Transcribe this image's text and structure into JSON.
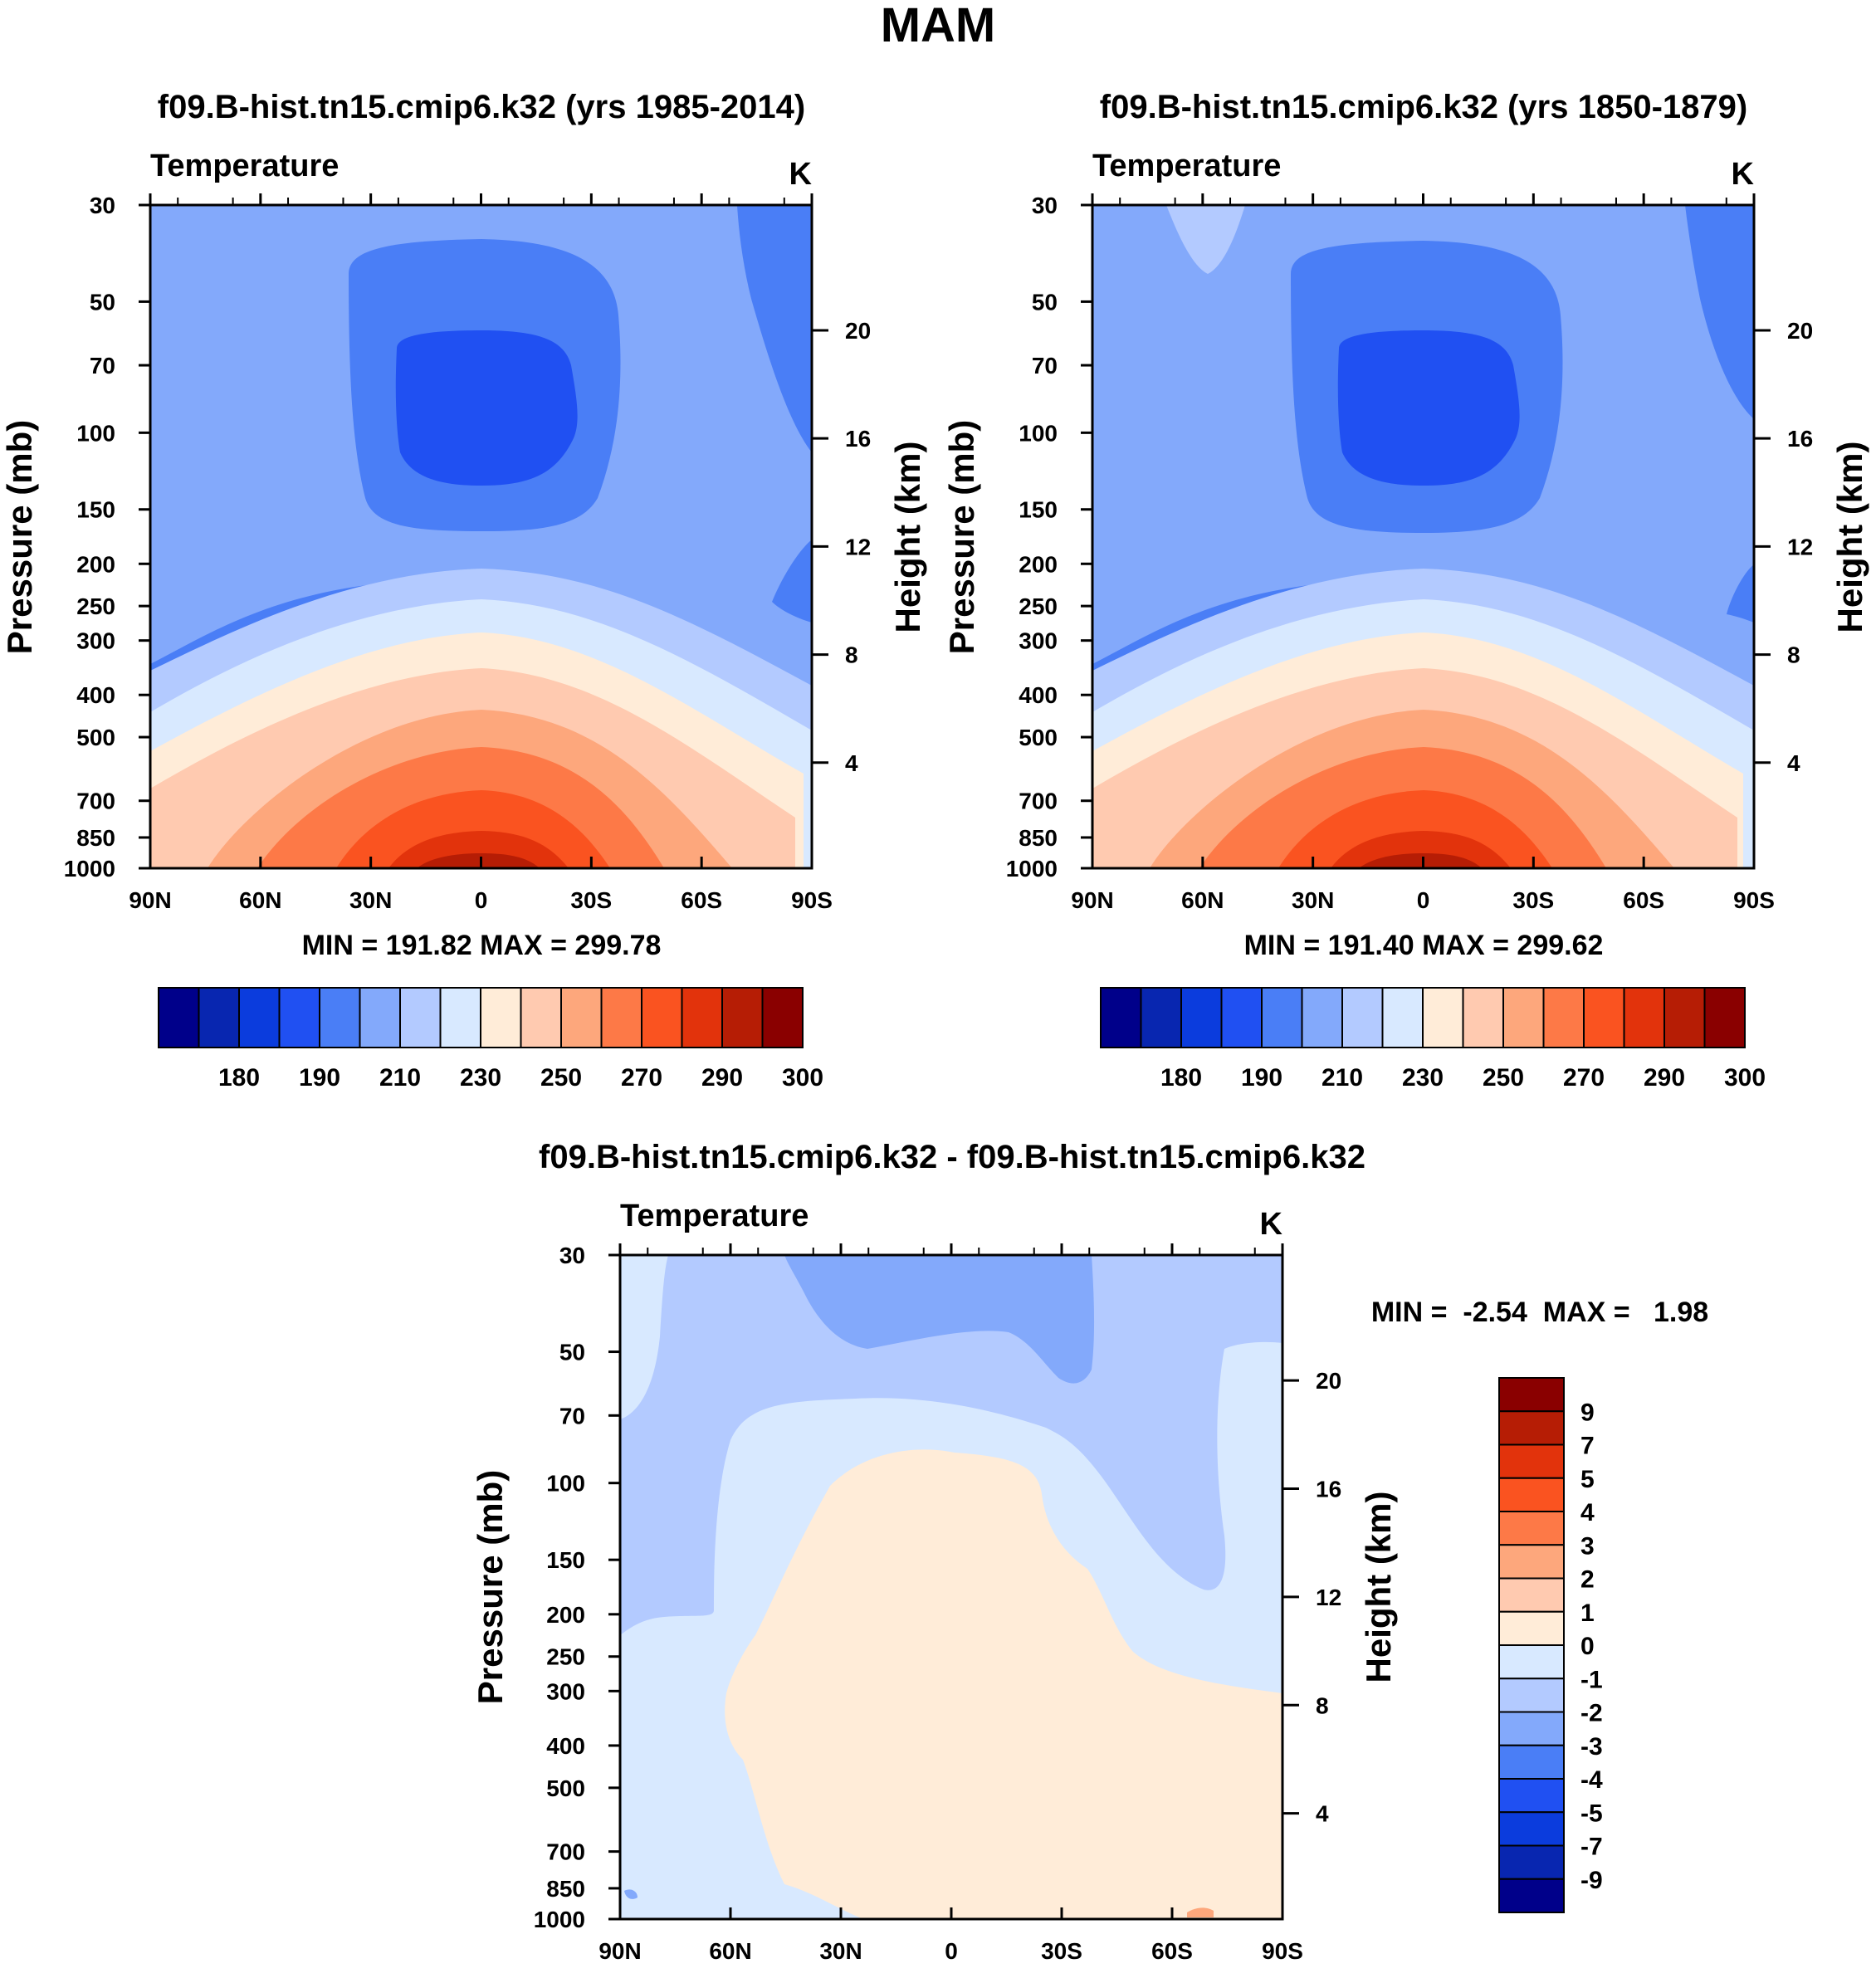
{
  "page_title": "MAM",
  "colors": {
    "abs_palette": [
      "#00008a",
      "#0826b0",
      "#0b3cdd",
      "#2050f2",
      "#4a7ef6",
      "#83a9fb",
      "#b3caff",
      "#d8e9ff",
      "#ffecd8",
      "#ffcab0",
      "#fda77c",
      "#fd7947",
      "#fa5320",
      "#e2330c",
      "#b61d05",
      "#8a0000"
    ],
    "diff_palette": [
      "#8a0000",
      "#b61d05",
      "#e2330c",
      "#fa5320",
      "#fd7947",
      "#fda77c",
      "#ffcab0",
      "#ffecd8",
      "#d8e9ff",
      "#b3caff",
      "#83a9fb",
      "#4a7ef6",
      "#2050f2",
      "#0b3cdd",
      "#0826b0",
      "#00008a"
    ]
  },
  "chart_data": [
    {
      "type": "contour",
      "title": "f09.B-hist.tn15.cmip6.k32 (yrs 1985-2014)",
      "variable": "Temperature",
      "units": "K",
      "ylabel": "Pressure (mb)",
      "ylabel_right": "Height (km)",
      "x_ticks": [
        "90N",
        "60N",
        "30N",
        "0",
        "30S",
        "60S",
        "90S"
      ],
      "y_ticks": [
        "30",
        "50",
        "70",
        "100",
        "150",
        "200",
        "250",
        "300",
        "400",
        "500",
        "700",
        "850",
        "1000"
      ],
      "y2_ticks": [
        "20",
        "16",
        "12",
        "8",
        "4"
      ],
      "stats": "MIN = 191.82  MAX = 299.78",
      "colorbar_labels": [
        "180",
        "190",
        "210",
        "230",
        "250",
        "270",
        "290",
        "300"
      ],
      "min": 191.82,
      "max": 299.78
    },
    {
      "type": "contour",
      "title": "f09.B-hist.tn15.cmip6.k32 (yrs 1850-1879)",
      "variable": "Temperature",
      "units": "K",
      "ylabel": "Pressure (mb)",
      "ylabel_right": "Height (km)",
      "x_ticks": [
        "90N",
        "60N",
        "30N",
        "0",
        "30S",
        "60S",
        "90S"
      ],
      "y_ticks": [
        "30",
        "50",
        "70",
        "100",
        "150",
        "200",
        "250",
        "300",
        "400",
        "500",
        "700",
        "850",
        "1000"
      ],
      "y2_ticks": [
        "20",
        "16",
        "12",
        "8",
        "4"
      ],
      "stats": "MIN = 191.40  MAX = 299.62",
      "colorbar_labels": [
        "180",
        "190",
        "210",
        "230",
        "250",
        "270",
        "290",
        "300"
      ],
      "min": 191.4,
      "max": 299.62
    },
    {
      "type": "contour",
      "title": "f09.B-hist.tn15.cmip6.k32 - f09.B-hist.tn15.cmip6.k32",
      "variable": "Temperature",
      "units": "K",
      "ylabel": "Pressure (mb)",
      "ylabel_right": "Height (km)",
      "x_ticks": [
        "90N",
        "60N",
        "30N",
        "0",
        "30S",
        "60S",
        "90S"
      ],
      "y_ticks": [
        "30",
        "50",
        "70",
        "100",
        "150",
        "200",
        "250",
        "300",
        "400",
        "500",
        "700",
        "850",
        "1000"
      ],
      "y2_ticks": [
        "20",
        "16",
        "12",
        "8",
        "4"
      ],
      "stats": "MIN =  -2.54  MAX =   1.98",
      "colorbar_labels": [
        "9",
        "7",
        "5",
        "4",
        "3",
        "2",
        "1",
        "0",
        "-1",
        "-2",
        "-3",
        "-4",
        "-5",
        "-7",
        "-9"
      ],
      "min": -2.54,
      "max": 1.98
    }
  ]
}
